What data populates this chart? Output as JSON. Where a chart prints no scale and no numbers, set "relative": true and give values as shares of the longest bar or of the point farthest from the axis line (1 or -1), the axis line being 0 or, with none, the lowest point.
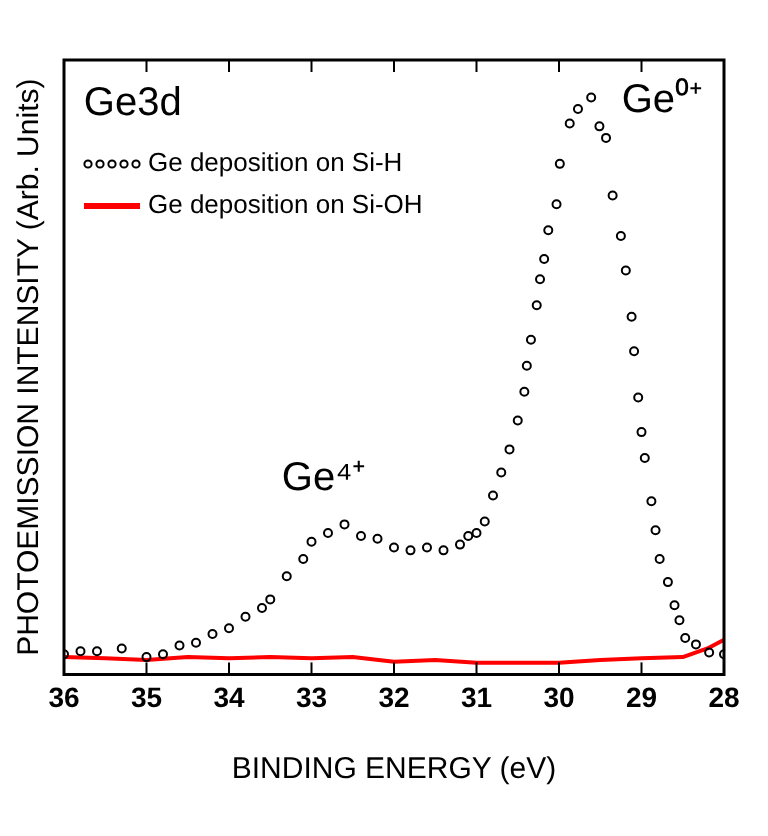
{
  "chart_data": {
    "type": "scatter",
    "xlabel": "BINDING ENERGY (eV)",
    "ylabel": "PHOTOEMISSION INTENSITY (Arb. Units)",
    "relative": true,
    "xlim": [
      36,
      28
    ],
    "xticks": [
      36,
      35,
      34,
      33,
      32,
      31,
      30,
      29,
      28
    ],
    "legend": "top left",
    "grid": false,
    "annotations": [
      "Ge3d",
      "Ge⁴⁺",
      "Ge⁰⁺"
    ],
    "series": [
      {
        "name": "Ge deposition on Si-H",
        "marker": "circle",
        "color": "#000000",
        "x": [
          36.0,
          35.8,
          35.6,
          35.3,
          35.0,
          34.8,
          34.6,
          34.4,
          34.2,
          34.0,
          33.8,
          33.6,
          33.5,
          33.3,
          33.1,
          33.0,
          32.8,
          32.6,
          32.4,
          32.2,
          32.0,
          31.8,
          31.6,
          31.4,
          31.2,
          31.1,
          31.0,
          30.9,
          30.8,
          30.7,
          30.6,
          30.5,
          30.42,
          30.39,
          30.34,
          30.27,
          30.23,
          30.18,
          30.13,
          30.03,
          29.99,
          29.87,
          29.77,
          29.61,
          29.51,
          29.43,
          29.35,
          29.25,
          29.19,
          29.12,
          29.09,
          29.04,
          29.0,
          28.96,
          28.88,
          28.83,
          28.78,
          28.68,
          28.6,
          28.54,
          28.47,
          28.34,
          28.18,
          28.0
        ],
        "values": [
          0.035,
          0.04,
          0.04,
          0.045,
          0.03,
          0.035,
          0.05,
          0.055,
          0.07,
          0.08,
          0.1,
          0.115,
          0.13,
          0.17,
          0.2,
          0.23,
          0.245,
          0.26,
          0.24,
          0.235,
          0.22,
          0.215,
          0.22,
          0.215,
          0.225,
          0.24,
          0.245,
          0.265,
          0.31,
          0.35,
          0.39,
          0.44,
          0.49,
          0.535,
          0.58,
          0.64,
          0.685,
          0.72,
          0.77,
          0.815,
          0.885,
          0.955,
          0.98,
          1.0,
          0.95,
          0.93,
          0.83,
          0.76,
          0.7,
          0.62,
          0.56,
          0.48,
          0.42,
          0.375,
          0.3,
          0.25,
          0.2,
          0.16,
          0.12,
          0.094,
          0.063,
          0.052,
          0.038,
          0.035
        ]
      },
      {
        "name": "Ge deposition on Si-OH",
        "type": "line",
        "marker": "none",
        "line_style": "solid",
        "color": "#ff0000",
        "x": [
          36.0,
          35.5,
          35.0,
          34.5,
          34.0,
          33.5,
          33.0,
          32.5,
          32.0,
          31.5,
          31.0,
          30.5,
          30.0,
          29.5,
          29.0,
          28.5,
          28.2,
          28.0
        ],
        "values": [
          0.03,
          0.028,
          0.025,
          0.03,
          0.028,
          0.03,
          0.028,
          0.03,
          0.022,
          0.025,
          0.02,
          0.02,
          0.02,
          0.025,
          0.028,
          0.03,
          0.045,
          0.06
        ]
      }
    ]
  }
}
